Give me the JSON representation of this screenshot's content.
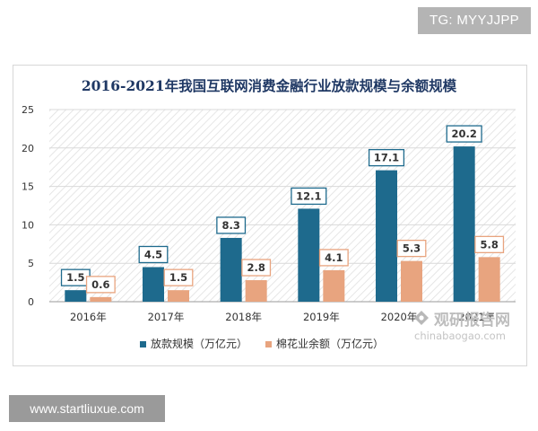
{
  "badges": {
    "telegram": "TG: MYYJJPP",
    "website": "www.startliuxue.com"
  },
  "watermark": {
    "brand_cn": "观研报告网",
    "brand_url": "chinabaogao.com"
  },
  "colors": {
    "series_primary": "#1e6a8d",
    "series_secondary": "#e8a47f",
    "title": "#1f3864",
    "axis_text": "#333333",
    "grid": "#d9d9d9",
    "hatch": "#e0e0e0"
  },
  "chart_data": {
    "type": "bar",
    "title": "2016-2021年我国互联网消费金融行业放款规模与余额规模",
    "categories": [
      "2016年",
      "2017年",
      "2018年",
      "2019年",
      "2020年",
      "2021年"
    ],
    "series": [
      {
        "name": "放款规模（万亿元）",
        "values": [
          1.5,
          4.5,
          8.3,
          12.1,
          17.1,
          20.2
        ],
        "labels": [
          "1.5",
          "4.5",
          "8.3",
          "12.1",
          "17.1",
          "20.2"
        ]
      },
      {
        "name": "棉花业余额（万亿元）",
        "values": [
          0.6,
          1.5,
          2.8,
          4.1,
          5.3,
          5.8
        ],
        "labels": [
          "0.6",
          "1.5",
          "2.8",
          "4.1",
          "5.3",
          "5.8"
        ]
      }
    ],
    "ylim": [
      0,
      25
    ],
    "yticks": [
      "0",
      "5",
      "10",
      "15",
      "20",
      "25"
    ],
    "xlabel": "",
    "ylabel": "",
    "grid": true,
    "legend_position": "bottom-left"
  }
}
